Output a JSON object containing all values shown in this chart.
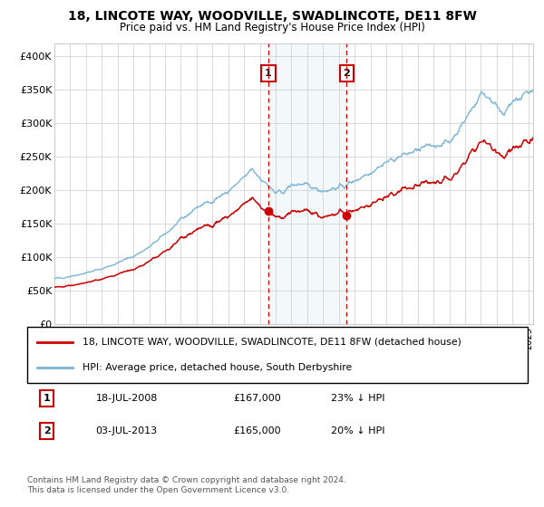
{
  "title": "18, LINCOTE WAY, WOODVILLE, SWADLINCOTE, DE11 8FW",
  "subtitle": "Price paid vs. HM Land Registry's House Price Index (HPI)",
  "legend_line1": "18, LINCOTE WAY, WOODVILLE, SWADLINCOTE, DE11 8FW (detached house)",
  "legend_line2": "HPI: Average price, detached house, South Derbyshire",
  "footnote": "Contains HM Land Registry data © Crown copyright and database right 2024.\nThis data is licensed under the Open Government Licence v3.0.",
  "sale1_date": "18-JUL-2008",
  "sale1_price": "£167,000",
  "sale1_hpi": "23% ↓ HPI",
  "sale2_date": "03-JUL-2013",
  "sale2_price": "£165,000",
  "sale2_hpi": "20% ↓ HPI",
  "sale1_year": 2008.54,
  "sale2_year": 2013.5,
  "sale1_price_val": 167000,
  "sale2_price_val": 165000,
  "hpi_color": "#7ab4d8",
  "price_color": "#cc0000",
  "marker_color": "#cc0000",
  "vline_color": "#cc0000",
  "shade_color": "#d8e8f4",
  "background_color": "#ffffff",
  "grid_color": "#cccccc",
  "ylim": [
    0,
    420000
  ],
  "xlim_start": 1995.0,
  "xlim_end": 2025.3,
  "yticks": [
    0,
    50000,
    100000,
    150000,
    200000,
    250000,
    300000,
    350000,
    400000
  ],
  "ytick_labels": [
    "£0",
    "£50K",
    "£100K",
    "£150K",
    "£200K",
    "£250K",
    "£300K",
    "£350K",
    "£400K"
  ]
}
